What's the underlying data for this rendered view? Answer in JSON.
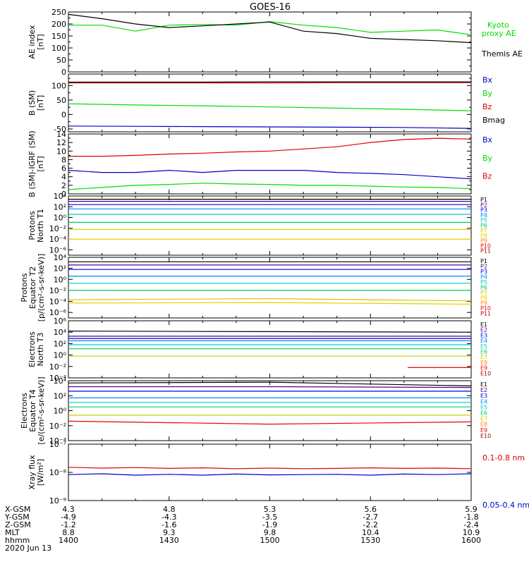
{
  "title": "GOES-16",
  "panels": [
    {
      "id": "ae",
      "ylabel": [
        "AE index",
        "[nT]"
      ],
      "yscale": "linear",
      "ylim": [
        0,
        250
      ],
      "yticks": [
        0,
        50,
        100,
        150,
        200,
        250
      ],
      "yticks_minor": [
        25,
        75,
        125,
        175,
        225
      ],
      "ticklabels": [
        "0",
        "50",
        "100",
        "150",
        "200",
        "250"
      ],
      "legend": [
        {
          "lines": [
            "Kyoto",
            "proxy AE"
          ],
          "color": "#00dd00"
        },
        {
          "lines": [
            "Themis AE"
          ],
          "color": "#000000"
        }
      ]
    },
    {
      "id": "b_sm",
      "ylabel": [
        "B (SM)",
        "[nT]"
      ],
      "yscale": "linear",
      "ylim": [
        -60,
        140
      ],
      "yticks": [
        -50,
        0,
        50,
        100
      ],
      "yticks_minor": [
        -25,
        25,
        75,
        125
      ],
      "ticklabels": [
        "-50",
        "0",
        "50",
        "100"
      ],
      "legend": [
        {
          "lines": [
            "Bx"
          ],
          "color": "#0000cc"
        },
        {
          "lines": [
            "By"
          ],
          "color": "#00dd00"
        },
        {
          "lines": [
            "Bz"
          ],
          "color": "#dd0000"
        },
        {
          "lines": [
            "Bmag"
          ],
          "color": "#000000"
        }
      ]
    },
    {
      "id": "b_igrf",
      "ylabel": [
        "B (SM)-IGRF (SM)",
        "[nT]"
      ],
      "yscale": "linear",
      "ylim": [
        0,
        14
      ],
      "yticks": [
        0,
        2,
        4,
        6,
        8,
        10,
        12,
        14
      ],
      "yticks_minor": [
        1,
        3,
        5,
        7,
        9,
        11,
        13
      ],
      "ticklabels": [
        "0",
        "2",
        "4",
        "6",
        "8",
        "10",
        "12",
        "14"
      ],
      "legend": [
        {
          "lines": [
            "Bx"
          ],
          "color": "#0000cc"
        },
        {
          "lines": [
            "By"
          ],
          "color": "#00dd00"
        },
        {
          "lines": [
            "Bz"
          ],
          "color": "#dd0000"
        }
      ]
    },
    {
      "id": "p_north",
      "ylabel": [
        "Protons",
        "North T1"
      ],
      "yscale": "log",
      "ylim": [
        -7,
        4
      ],
      "yticks": [
        -6,
        -4,
        -2,
        0,
        2,
        4
      ],
      "ticklabels": [
        "10⁻⁶",
        "10⁻⁴",
        "10⁻²",
        "10⁰",
        "10²",
        "10⁴"
      ],
      "chan_labels": [
        "P1",
        "P2",
        "P3",
        "P4",
        "P5",
        "P6",
        "P7",
        "P8",
        "P9",
        "P10",
        "P11"
      ],
      "chan_colors": [
        "#000000",
        "#550088",
        "#0000ee",
        "#0088ff",
        "#00cccc",
        "#00cc66",
        "#cccc00",
        "#eecc00",
        "#ff8800",
        "#ee0000",
        "#aa0000"
      ]
    },
    {
      "id": "p_equator",
      "ylabel": [
        "Protons",
        "Equator T2",
        "[p/(cm²-s-sr-keV)]"
      ],
      "yscale": "log",
      "ylim": [
        -7,
        4
      ],
      "yticks": [
        -6,
        -4,
        -2,
        0,
        2,
        4
      ],
      "ticklabels": [
        "10⁻⁶",
        "10⁻⁴",
        "10⁻²",
        "10⁰",
        "10²",
        "10⁴"
      ],
      "chan_labels": [
        "P1",
        "P2",
        "P3",
        "P4",
        "P5",
        "P6",
        "P7",
        "P8",
        "P9",
        "P10",
        "P11"
      ],
      "chan_colors": [
        "#000000",
        "#550088",
        "#0000ee",
        "#0088ff",
        "#00cccc",
        "#00cc66",
        "#cccc00",
        "#eecc00",
        "#ff8800",
        "#ee0000",
        "#aa0000"
      ]
    },
    {
      "id": "e_north",
      "ylabel": [
        "Electrons",
        "North T3"
      ],
      "yscale": "log",
      "ylim": [
        -4,
        6
      ],
      "yticks": [
        -4,
        -2,
        0,
        2,
        4,
        6
      ],
      "ticklabels": [
        "10⁻⁴",
        "10⁻²",
        "10⁰",
        "10²",
        "10⁴",
        "10⁶"
      ],
      "chan_labels": [
        "E1",
        "E2",
        "E3",
        "E4",
        "E5",
        "E6",
        "E7",
        "E8",
        "E9",
        "E10"
      ],
      "chan_colors": [
        "#000000",
        "#550088",
        "#0000ee",
        "#0088ff",
        "#00cccc",
        "#00cc66",
        "#cccc00",
        "#ff8800",
        "#ee0000",
        "#aa0000"
      ]
    },
    {
      "id": "e_equator",
      "ylabel": [
        "Electrons",
        "Equator T4",
        "[e/(cm²-s-sr-keV)]"
      ],
      "yscale": "log",
      "ylim": [
        -4,
        4
      ],
      "yticks": [
        -4,
        -2,
        0,
        2,
        4
      ],
      "ticklabels": [
        "10⁻⁴",
        "10⁻²",
        "10⁰",
        "10²",
        "10⁴"
      ],
      "chan_labels": [
        "E1",
        "E2",
        "E3",
        "E4",
        "E5",
        "E6",
        "E7",
        "E8",
        "E9",
        "E10"
      ],
      "chan_colors": [
        "#000000",
        "#550088",
        "#0000ee",
        "#0088ff",
        "#00cccc",
        "#00cc66",
        "#cccc00",
        "#ff8800",
        "#ee0000",
        "#aa0000"
      ]
    },
    {
      "id": "xray",
      "ylabel": [
        "Xray flux",
        "[W/m²]"
      ],
      "yscale": "log",
      "ylim": [
        -9,
        -7
      ],
      "yticks": [
        -9,
        -8,
        -7
      ],
      "ticklabels": [
        "10⁻⁹",
        "10⁻⁸",
        "10⁻⁷"
      ],
      "legend": [
        {
          "lines": [
            "0.1-0.8 nm"
          ],
          "color": "#dd0000"
        },
        {
          "lines": [
            "0.05-0.4 nm"
          ],
          "color": "#0000cc"
        }
      ]
    }
  ],
  "bottom_axis": {
    "row_labels": [
      "X-GSM",
      "Y-GSM",
      "Z-GSM",
      "MLT",
      "hhmm"
    ],
    "date": "2020 Jun 13",
    "columns": [
      {
        "minute": 0,
        "values": [
          "4.3",
          "-4.9",
          "-1.2",
          "8.8",
          "1400"
        ]
      },
      {
        "minute": 30,
        "values": [
          "4.8",
          "-4.3",
          "-1.6",
          "9.3",
          "1430"
        ]
      },
      {
        "minute": 60,
        "values": [
          "5.3",
          "-3.5",
          "-1.9",
          "9.8",
          "1500"
        ]
      },
      {
        "minute": 90,
        "values": [
          "5.6",
          "-2.7",
          "-2.2",
          "10.4",
          "1530"
        ]
      },
      {
        "minute": 120,
        "values": [
          "5.9",
          "-1.8",
          "-2.4",
          "10.9",
          "1600"
        ]
      }
    ]
  },
  "chart_data": [
    {
      "type": "line",
      "title": "GOES-16",
      "ylabel": "AE index [nT]",
      "x_minutes": [
        0,
        10,
        20,
        30,
        40,
        50,
        60,
        70,
        80,
        90,
        100,
        110,
        120
      ],
      "ylim": [
        0,
        250
      ],
      "series": [
        {
          "name": "Kyoto proxy AE",
          "color": "#00dd00",
          "values": [
            195,
            195,
            170,
            195,
            198,
            195,
            210,
            195,
            185,
            165,
            170,
            175,
            155
          ]
        },
        {
          "name": "Themis AE",
          "color": "#000000",
          "values": [
            240,
            222,
            200,
            185,
            192,
            200,
            208,
            170,
            160,
            140,
            135,
            130,
            122
          ]
        }
      ]
    },
    {
      "type": "line",
      "ylabel": "B (SM) [nT]",
      "x_minutes": [
        0,
        20,
        40,
        60,
        80,
        100,
        120
      ],
      "ylim": [
        -60,
        140
      ],
      "series": [
        {
          "name": "Bx",
          "color": "#0000cc",
          "values": [
            -40,
            -41,
            -42,
            -43,
            -44,
            -45,
            -48
          ]
        },
        {
          "name": "By",
          "color": "#00dd00",
          "values": [
            37,
            33,
            30,
            26,
            22,
            18,
            13
          ]
        },
        {
          "name": "Bz",
          "color": "#dd0000",
          "values": [
            109,
            109,
            109,
            109,
            110,
            110,
            110
          ]
        },
        {
          "name": "Bmag",
          "color": "#000000",
          "values": [
            112,
            112,
            112,
            113,
            113,
            113,
            113
          ]
        }
      ]
    },
    {
      "type": "line",
      "ylabel": "B (SM)-IGRF (SM) [nT]",
      "x_minutes": [
        0,
        10,
        20,
        30,
        40,
        50,
        60,
        70,
        80,
        90,
        100,
        110,
        120
      ],
      "ylim": [
        0,
        14
      ],
      "series": [
        {
          "name": "Bx",
          "color": "#0000cc",
          "values": [
            5.5,
            5.0,
            5.0,
            5.5,
            5.0,
            5.5,
            5.5,
            5.5,
            5.0,
            4.8,
            4.5,
            4.0,
            3.5
          ]
        },
        {
          "name": "By",
          "color": "#00dd00",
          "values": [
            1.0,
            1.5,
            2.0,
            2.2,
            2.5,
            2.3,
            2.2,
            2.0,
            2.0,
            1.8,
            1.6,
            1.5,
            1.2
          ]
        },
        {
          "name": "Bz",
          "color": "#dd0000",
          "values": [
            8.8,
            8.8,
            9.0,
            9.3,
            9.5,
            9.8,
            10.0,
            10.5,
            11.0,
            12.0,
            12.7,
            13.0,
            12.8
          ]
        }
      ]
    },
    {
      "type": "line",
      "ylabel": "Protons North T1",
      "yscale": "log",
      "x_minutes": [
        0,
        60,
        120
      ],
      "ylim": [
        -7,
        4
      ],
      "series": [
        {
          "name": "P1",
          "values": [
            3.4,
            3.4,
            3.4
          ]
        },
        {
          "name": "P2",
          "values": [
            3.0,
            3.0,
            3.0
          ]
        },
        {
          "name": "P3",
          "values": [
            2.4,
            2.4,
            2.4
          ]
        },
        {
          "name": "P4",
          "values": [
            1.6,
            1.6,
            1.6
          ]
        },
        {
          "name": "P5",
          "values": [
            0.6,
            0.6,
            0.6
          ]
        },
        {
          "name": "P6",
          "values": [
            -0.9,
            -0.9,
            -0.9
          ]
        },
        {
          "name": "P7",
          "values": [
            -2.2,
            -2.2,
            -2.2
          ]
        },
        {
          "name": "P8",
          "values": [
            -4.0,
            -4.0,
            -4.0
          ]
        }
      ]
    },
    {
      "type": "line",
      "ylabel": "Protons Equator T2 [p/(cm²-s-sr-keV)]",
      "yscale": "log",
      "x_minutes": [
        0,
        60,
        120
      ],
      "ylim": [
        -7,
        4
      ],
      "series": [
        {
          "name": "P1",
          "values": [
            3.2,
            3.2,
            3.2
          ]
        },
        {
          "name": "P2",
          "values": [
            2.6,
            2.6,
            2.6
          ]
        },
        {
          "name": "P3",
          "values": [
            1.8,
            1.8,
            1.8
          ]
        },
        {
          "name": "P4",
          "values": [
            0.6,
            0.6,
            0.6
          ]
        },
        {
          "name": "P5",
          "values": [
            -0.7,
            -0.7,
            -0.7
          ]
        },
        {
          "name": "P6",
          "values": [
            -2.0,
            -2.0,
            -2.0
          ]
        },
        {
          "name": "P7",
          "values": [
            -3.7,
            -3.5,
            -3.9
          ]
        },
        {
          "name": "P8",
          "values": [
            -4.3,
            -4.2,
            -4.5
          ]
        }
      ]
    },
    {
      "type": "line",
      "ylabel": "Electrons North T3",
      "yscale": "log",
      "x_minutes": [
        0,
        60,
        120
      ],
      "ylim": [
        -4,
        6
      ],
      "series": [
        {
          "name": "E1",
          "values": [
            4.2,
            4.1,
            4.0
          ]
        },
        {
          "name": "E2",
          "values": [
            3.3,
            3.3,
            3.3
          ]
        },
        {
          "name": "E3",
          "values": [
            2.9,
            2.9,
            2.9
          ]
        },
        {
          "name": "E4",
          "values": [
            2.5,
            2.5,
            2.5
          ]
        },
        {
          "name": "E5",
          "values": [
            1.8,
            1.8,
            1.8
          ]
        },
        {
          "name": "E6",
          "values": [
            1.1,
            1.1,
            1.1
          ]
        },
        {
          "name": "E7",
          "values": [
            -0.2,
            -0.2,
            -0.2
          ]
        },
        {
          "name": "E9",
          "values": [
            null,
            null,
            -2.2
          ]
        }
      ]
    },
    {
      "type": "line",
      "ylabel": "Electrons Equator T4 [e/(cm²-s-sr-keV)]",
      "yscale": "log",
      "x_minutes": [
        0,
        60,
        120
      ],
      "ylim": [
        -4,
        4
      ],
      "series": [
        {
          "name": "E1",
          "values": [
            3.7,
            3.8,
            3.3
          ]
        },
        {
          "name": "E2",
          "values": [
            3.2,
            3.2,
            3.1
          ]
        },
        {
          "name": "E3",
          "values": [
            2.6,
            2.6,
            2.6
          ]
        },
        {
          "name": "E4",
          "values": [
            1.7,
            1.7,
            1.7
          ]
        },
        {
          "name": "E5",
          "values": [
            1.1,
            1.1,
            1.1
          ]
        },
        {
          "name": "E6",
          "values": [
            0.5,
            0.5,
            0.5
          ]
        },
        {
          "name": "E7",
          "values": [
            -0.6,
            -0.6,
            -0.6
          ]
        },
        {
          "name": "E9",
          "values": [
            -1.4,
            -1.8,
            -1.5
          ]
        }
      ]
    },
    {
      "type": "line",
      "ylabel": "Xray flux [W/m²]",
      "yscale": "log",
      "x_minutes": [
        0,
        10,
        20,
        30,
        40,
        50,
        60,
        70,
        80,
        90,
        100,
        110,
        120
      ],
      "ylim": [
        -9,
        -7
      ],
      "series": [
        {
          "name": "0.1-0.8 nm",
          "color": "#dd0000",
          "values": [
            -7.82,
            -7.85,
            -7.83,
            -7.86,
            -7.84,
            -7.87,
            -7.85,
            -7.87,
            -7.86,
            -7.84,
            -7.86,
            -7.85,
            -7.87
          ]
        },
        {
          "name": "0.05-0.4 nm",
          "color": "#0000cc",
          "values": [
            -8.08,
            -8.05,
            -8.1,
            -8.07,
            -8.1,
            -8.06,
            -8.09,
            -8.08,
            -8.07,
            -8.1,
            -8.06,
            -8.08,
            -8.05
          ]
        }
      ]
    }
  ]
}
